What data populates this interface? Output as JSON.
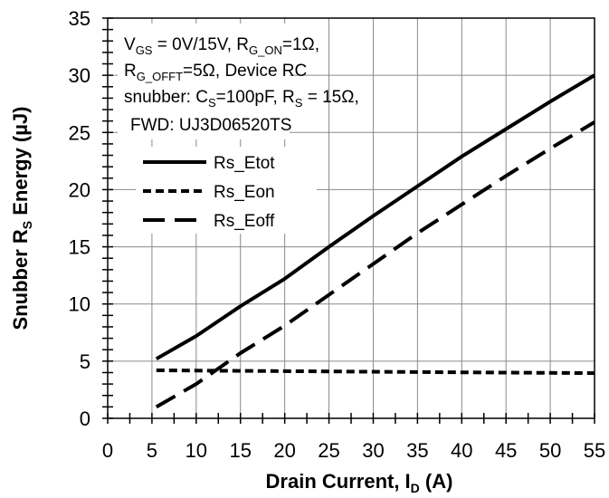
{
  "chart_data": {
    "type": "line",
    "xlabel": {
      "main": "Drain Current, I",
      "sub": "D",
      "unit": " (A)"
    },
    "ylabel": {
      "main": "Snubber R",
      "sub": "S",
      "unit": " Energy (µJ)"
    },
    "xlim": [
      0,
      55
    ],
    "ylim": [
      0,
      35
    ],
    "xticks": [
      "0",
      "5",
      "10",
      "15",
      "20",
      "25",
      "30",
      "35",
      "40",
      "45",
      "50",
      "55"
    ],
    "yticks": [
      "0",
      "5",
      "10",
      "15",
      "20",
      "25",
      "30",
      "35"
    ],
    "grid": true,
    "legend_position": "upper-left",
    "annotation": {
      "line1": {
        "a": "V",
        "a_sub": "GS",
        "b": " = 0V/15V, R",
        "b_sub": "G_ON",
        "c": "=1Ω,"
      },
      "line2": {
        "a": "R",
        "a_sub": "G_OFFT",
        "b": "=5Ω,  Device RC"
      },
      "line3": {
        "a": "snubber: C",
        "a_sub": "S",
        "b": "=100pF,   R",
        "b_sub": "S",
        "c": " = 15Ω,"
      },
      "line4": "FWD: UJ3D06520TS"
    },
    "series": [
      {
        "name": "Rs_Etot",
        "style": "solid",
        "x": [
          5.5,
          10,
          15,
          20,
          25,
          30,
          35,
          40,
          45,
          50,
          55
        ],
        "y": [
          5.2,
          7.2,
          9.8,
          12.2,
          15.0,
          17.7,
          20.3,
          22.9,
          25.3,
          27.7,
          30.0
        ]
      },
      {
        "name": "Rs_Eon",
        "style": "short-dash",
        "x": [
          5.5,
          15,
          25,
          35,
          45,
          55
        ],
        "y": [
          4.2,
          4.15,
          4.1,
          4.05,
          4.0,
          3.95
        ]
      },
      {
        "name": "Rs_Eoff",
        "style": "long-dash",
        "x": [
          5.5,
          10,
          15,
          20,
          25,
          30,
          35,
          40,
          45,
          50,
          55
        ],
        "y": [
          1.0,
          3.0,
          5.7,
          8.1,
          10.8,
          13.5,
          16.2,
          18.7,
          21.2,
          23.6,
          25.9
        ]
      }
    ]
  }
}
